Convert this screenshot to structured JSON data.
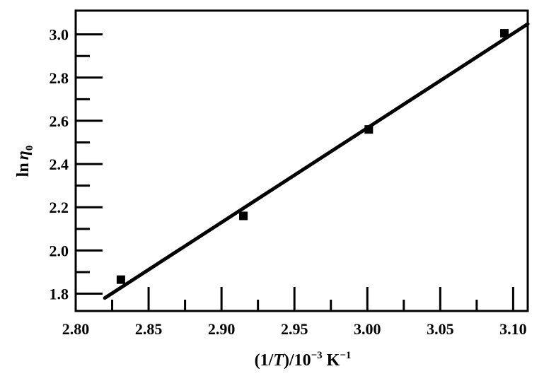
{
  "chart_data": {
    "type": "scatter",
    "title": "",
    "xlabel_parts": {
      "open": "(1/",
      "var": "T",
      "mid": ")/10",
      "exp": "−3",
      "unit": " K",
      "unit_exp": "−1"
    },
    "ylabel_parts": {
      "fn": "ln",
      "var": "η",
      "sub": "0"
    },
    "xlim": [
      2.8,
      3.11
    ],
    "ylim": [
      1.72,
      3.11
    ],
    "x_ticks": [
      "2.80",
      "2.85",
      "2.90",
      "2.95",
      "3.00",
      "3.05",
      "3.10"
    ],
    "y_ticks": [
      "1.8",
      "2.0",
      "2.2",
      "2.4",
      "2.6",
      "2.8",
      "3.0"
    ],
    "series": [
      {
        "points": [
          {
            "x": 2.831,
            "y": 1.865
          },
          {
            "x": 2.915,
            "y": 2.16
          },
          {
            "x": 3.001,
            "y": 2.56
          },
          {
            "x": 3.094,
            "y": 3.005
          }
        ]
      }
    ],
    "fit_line": {
      "x": [
        2.82,
        3.11
      ],
      "y": [
        1.78,
        3.048
      ]
    },
    "grid": false,
    "legend": "none"
  }
}
